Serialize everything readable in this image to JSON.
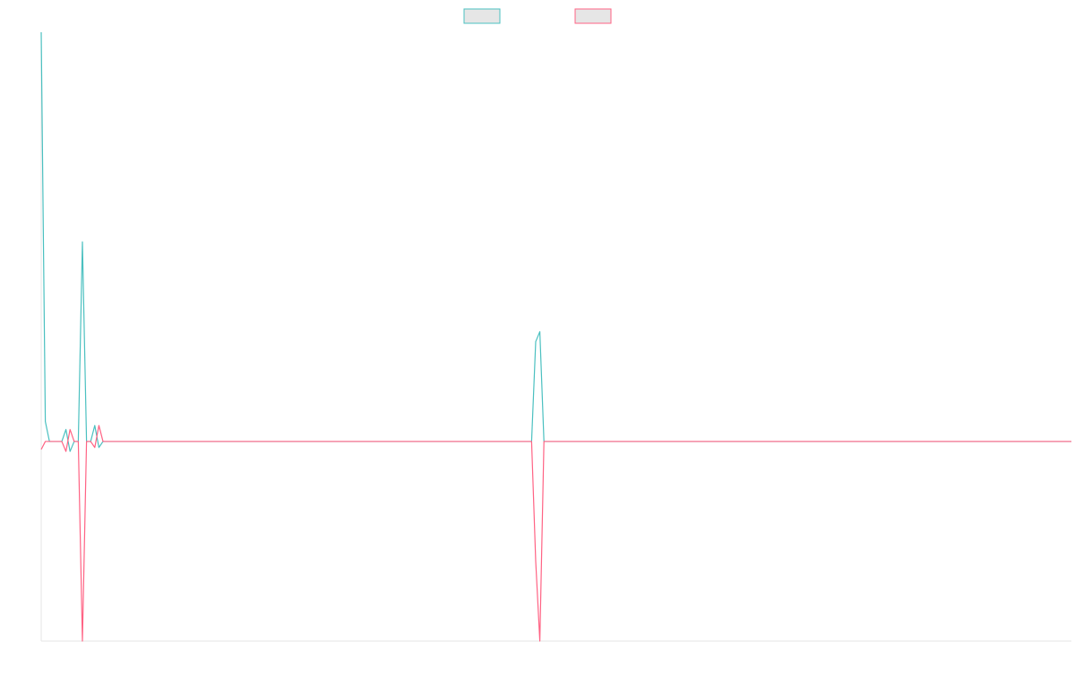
{
  "chart_data": {
    "type": "line",
    "title": "",
    "xlabel": "",
    "ylabel": "",
    "legend": {
      "position": "top-center",
      "entries": [
        {
          "name": "",
          "color": "#4bc0c0"
        },
        {
          "name": "",
          "color": "#ff6384"
        }
      ]
    },
    "grid": false,
    "x_tick_labels_visible": false,
    "y_tick_labels_visible": false,
    "xlim": [
      0,
      250
    ],
    "ylim": [
      -1.0,
      2.05
    ],
    "series": [
      {
        "name": "",
        "color": "#4bc0c0",
        "fill": false,
        "points": [
          [
            0,
            2.05
          ],
          [
            1,
            0.1
          ],
          [
            2,
            0.0
          ],
          [
            5,
            0.0
          ],
          [
            6,
            0.06
          ],
          [
            7,
            -0.05
          ],
          [
            8,
            0.0
          ],
          [
            9,
            0.0
          ],
          [
            10,
            1.0
          ],
          [
            11,
            0.0
          ],
          [
            12,
            0.0
          ],
          [
            13,
            0.08
          ],
          [
            14,
            -0.03
          ],
          [
            15,
            0.0
          ],
          [
            119,
            0.0
          ],
          [
            120,
            0.5
          ],
          [
            121,
            0.55
          ],
          [
            122,
            0.0
          ],
          [
            250,
            0.0
          ]
        ]
      },
      {
        "name": "",
        "color": "#ff6384",
        "fill": false,
        "points": [
          [
            0,
            -0.04
          ],
          [
            1,
            0.0
          ],
          [
            2,
            0.0
          ],
          [
            5,
            0.0
          ],
          [
            6,
            -0.05
          ],
          [
            7,
            0.06
          ],
          [
            8,
            0.0
          ],
          [
            9,
            0.0
          ],
          [
            10,
            -1.0
          ],
          [
            11,
            0.0
          ],
          [
            12,
            0.0
          ],
          [
            13,
            -0.03
          ],
          [
            14,
            0.08
          ],
          [
            15,
            0.0
          ],
          [
            119,
            0.0
          ],
          [
            120,
            -0.6
          ],
          [
            121,
            -1.0
          ],
          [
            122,
            0.0
          ],
          [
            250,
            0.0
          ]
        ]
      }
    ]
  }
}
